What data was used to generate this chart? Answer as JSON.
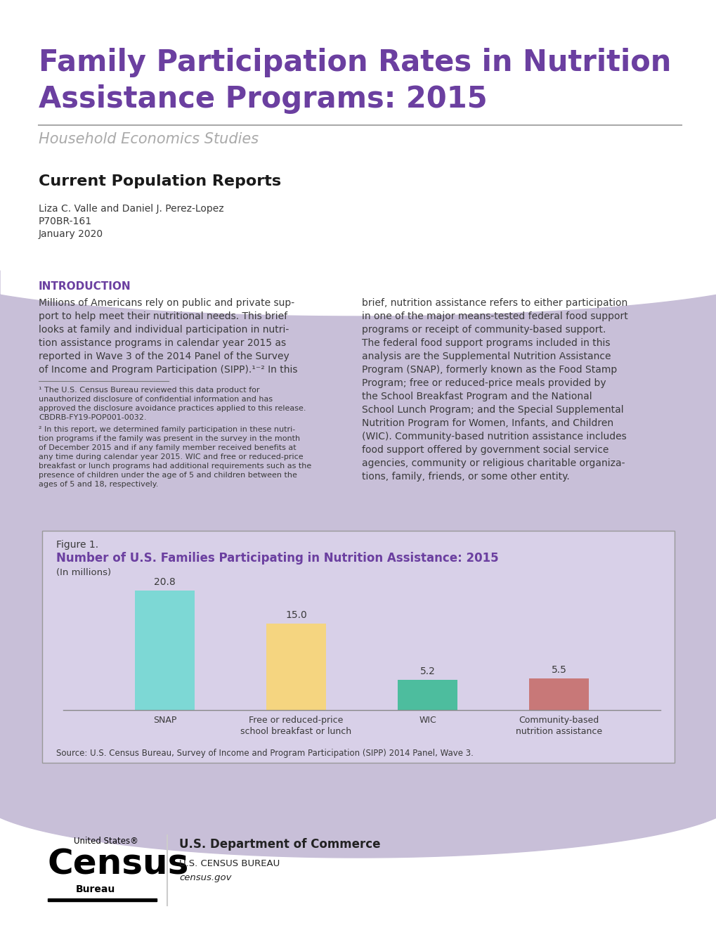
{
  "title_line1": "Family Participation Rates in Nutrition",
  "title_line2": "Assistance Programs: 2015",
  "subtitle": "Household Economics Studies",
  "section_header": "Current Population Reports",
  "authors": "Liza C. Valle and Daniel J. Perez-Lopez",
  "report_num": "P70BR-161",
  "date": "January 2020",
  "intro_header": "INTRODUCTION",
  "intro_text_left": "Millions of Americans rely on public and private sup-\nport to help meet their nutritional needs. This brief\nlooks at family and individual participation in nutri-\ntion assistance programs in calendar year 2015 as\nreported in Wave 3 of the 2014 Panel of the Survey\nof Income and Program Participation (SIPP).¹⁻² In this",
  "intro_text_right": "brief, nutrition assistance refers to either participation\nin one of the major means-tested federal food support\nprograms or receipt of community-based support.\nThe federal food support programs included in this\nanalysis are the Supplemental Nutrition Assistance\nProgram (SNAP), formerly known as the Food Stamp\nProgram; free or reduced-price meals provided by\nthe School Breakfast Program and the National\nSchool Lunch Program; and the Special Supplemental\nNutrition Program for Women, Infants, and Children\n(WIC). Community-based nutrition assistance includes\nfood support offered by government social service\nagencies, community or religious charitable organiza-\ntions, family, friends, or some other entity.",
  "footnote1": "¹ The U.S. Census Bureau reviewed this data product for\nunauthorized disclosure of confidential information and has\napproved the disclosure avoidance practices applied to this release.\nCBDRB-FY19-POP001-0032.",
  "footnote2": "² In this report, we determined family participation in these nutri-\ntion programs if the family was present in the survey in the month\nof December 2015 and if any family member received benefits at\nany time during calendar year 2015. WIC and free or reduced-price\nbreakfast or lunch programs had additional requirements such as the\npresence of children under the age of 5 and children between the\nages of 5 and 18, respectively.",
  "fig_label": "Figure 1.",
  "fig_title": "Number of U.S. Families Participating in Nutrition Assistance: 2015",
  "fig_subtitle": "(In millions)",
  "fig_source": "Source: U.S. Census Bureau, Survey of Income and Program Participation (SIPP) 2014 Panel, Wave 3.",
  "categories": [
    "SNAP",
    "Free or reduced-price\nschool breakfast or lunch",
    "WIC",
    "Community-based\nnutrition assistance"
  ],
  "values": [
    20.8,
    15.0,
    5.2,
    5.5
  ],
  "bar_colors": [
    "#7DD8D5",
    "#F5D580",
    "#4DBD9E",
    "#C87878"
  ],
  "page_bg_color": "#C8BFD8",
  "fig_box_color": "#D8D0E8",
  "white_bg": "#FFFFFF",
  "title_color": "#6B3FA0",
  "intro_header_color": "#6B3FA0",
  "fig_title_color": "#6B3FA0",
  "text_color": "#3A3A3A",
  "subtitle_color": "#AAAAAA",
  "section_header_color": "#1A1A1A",
  "dept_text_color": "#222222",
  "line_color": "#AAAAAA"
}
